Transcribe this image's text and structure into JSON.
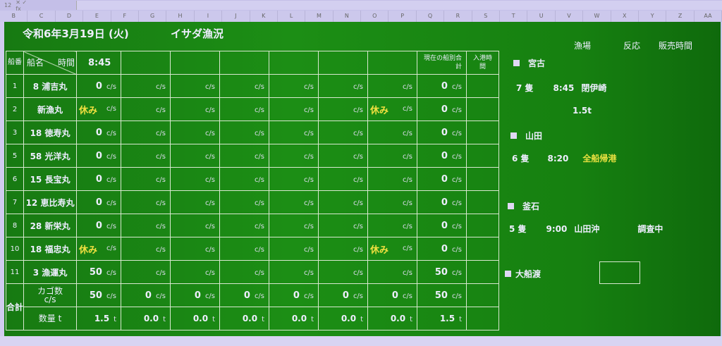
{
  "formula_bar": {
    "cell_ref": "12"
  },
  "columns": [
    "B",
    "C",
    "D",
    "E",
    "F",
    "G",
    "H",
    "I",
    "J",
    "K",
    "L",
    "M",
    "N",
    "O",
    "P",
    "Q",
    "R",
    "S",
    "T",
    "U",
    "V",
    "W",
    "X",
    "Y",
    "Z",
    "AA"
  ],
  "header": {
    "date": "令和6年3月19日 (火)",
    "title": "イサダ漁況"
  },
  "table": {
    "col_no": "船番",
    "col_name": "船名",
    "col_time": "時間",
    "first_time": "8:45",
    "col_total": "現在の船別合計",
    "col_port": "入港時間",
    "unit_cs": "c/s",
    "unit_t": "t",
    "rest_label": "休み",
    "rows": [
      {
        "no": "1",
        "name": "8 浦吉丸",
        "values": [
          "0",
          "",
          "",
          "",
          "",
          "",
          ""
        ],
        "total": "0"
      },
      {
        "no": "2",
        "name": "新漁丸",
        "values": [
          "休み",
          "",
          "",
          "",
          "",
          "",
          "休み"
        ],
        "total": "0"
      },
      {
        "no": "3",
        "name": "18 徳寿丸",
        "values": [
          "0",
          "",
          "",
          "",
          "",
          "",
          ""
        ],
        "total": "0"
      },
      {
        "no": "5",
        "name": "58 光洋丸",
        "values": [
          "0",
          "",
          "",
          "",
          "",
          "",
          ""
        ],
        "total": "0"
      },
      {
        "no": "6",
        "name": "15 長宝丸",
        "values": [
          "0",
          "",
          "",
          "",
          "",
          "",
          ""
        ],
        "total": "0"
      },
      {
        "no": "7",
        "name": "12 恵比寿丸",
        "values": [
          "0",
          "",
          "",
          "",
          "",
          "",
          ""
        ],
        "total": "0"
      },
      {
        "no": "8",
        "name": "28 新栄丸",
        "values": [
          "0",
          "",
          "",
          "",
          "",
          "",
          ""
        ],
        "total": "0"
      },
      {
        "no": "10",
        "name": "18 福忠丸",
        "values": [
          "休み",
          "",
          "",
          "",
          "",
          "",
          "休み"
        ],
        "total": "0"
      },
      {
        "no": "11",
        "name": "3 漁運丸",
        "values": [
          "50",
          "",
          "",
          "",
          "",
          "",
          ""
        ],
        "total": "50"
      }
    ],
    "sum_label": "合計",
    "cases_label": "カゴ数 c/s",
    "qty_label": "数量 t",
    "cases": [
      "50",
      "0",
      "0",
      "0",
      "0",
      "0",
      "0"
    ],
    "cases_total": "50",
    "qty": [
      "1.5",
      "0.0",
      "0.0",
      "0.0",
      "0.0",
      "0.0",
      "0.0"
    ],
    "qty_total": "1.5"
  },
  "side": {
    "headers": {
      "ground": "漁場",
      "response": "反応",
      "sale_time": "販売時間"
    },
    "ports": [
      {
        "name": "宮古",
        "boats": "7 隻",
        "time": "8:45",
        "ground": "閉伊崎",
        "note": "1.5t"
      },
      {
        "name": "山田",
        "boats": "6 隻",
        "time": "8:20",
        "ground": "全船帰港"
      },
      {
        "name": "釜石",
        "boats": "5 隻",
        "time": "9:00",
        "ground": "山田沖",
        "response": "調査中"
      },
      {
        "name": "大船渡"
      }
    ]
  }
}
